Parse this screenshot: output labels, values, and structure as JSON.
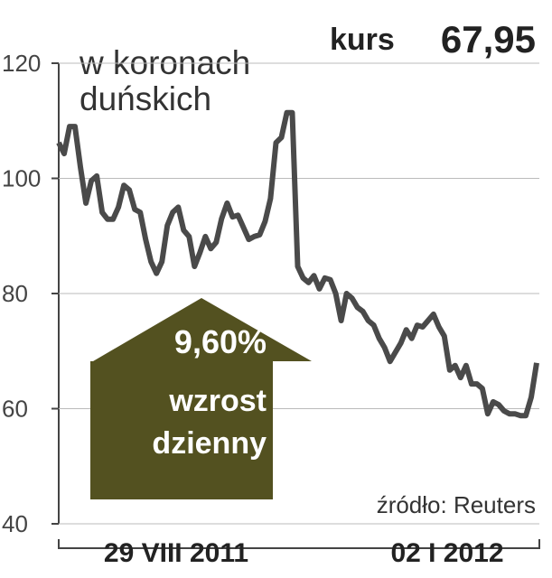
{
  "chart_data": {
    "type": "line",
    "title_lines": [
      "w koronach",
      "duńskich"
    ],
    "price_label": "kurs",
    "price_value": "67,95",
    "change_lines": [
      "9,60%",
      "wzrost",
      "dzienny"
    ],
    "source": "źródło: Reuters",
    "x_labels": [
      "29 VIII 2011",
      "02 I 2012"
    ],
    "series": [
      {
        "color": "#4a4a4a",
        "values": [
          106.2,
          104.3,
          109,
          109,
          102,
          95.7,
          99.6,
          100.4,
          94.1,
          92.9,
          92.9,
          95,
          98.8,
          98,
          94.6,
          94.1,
          89.4,
          85.5,
          83.5,
          85.5,
          91.8,
          94.1,
          95,
          91,
          89.9,
          84.7,
          87.1,
          89.9,
          87.8,
          88.9,
          93,
          95.7,
          93.3,
          93.6,
          91.5,
          89.4,
          89.9,
          90.2,
          92.5,
          96.5,
          106.2,
          107.1,
          111.4,
          111.4,
          84.7,
          82.7,
          81.9,
          83.1,
          80.8,
          82.7,
          82.4,
          80,
          75.3,
          80,
          79.2,
          77.6,
          76.9,
          75.3,
          74.5,
          72.2,
          70.6,
          68.2,
          69.8,
          71.4,
          73.7,
          72.2,
          74.5,
          74.2,
          75.3,
          76.4,
          74.2,
          72.6,
          66.7,
          67.5,
          65.4,
          67.5,
          64.3,
          64.3,
          63.5,
          59.1,
          61.2,
          60.7,
          59.6,
          59.1,
          59.1,
          58.8,
          58.8,
          62,
          67.95
        ]
      }
    ],
    "arrow_color": "#535120",
    "ylim": [
      40,
      120
    ],
    "yticks": [
      40,
      60,
      80,
      100,
      120
    ],
    "grid": true
  }
}
